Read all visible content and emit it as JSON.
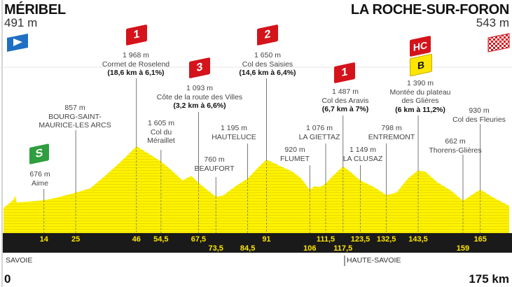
{
  "start": {
    "name": "MÉRIBEL",
    "altitude": "491 m"
  },
  "finish": {
    "name": "LA ROCHE-SUR-FORON",
    "altitude": "543 m"
  },
  "colors": {
    "profile": "#fff200",
    "band": "#1a1a1a",
    "km_text": "#ffe600",
    "climb_badge": "#d4131b",
    "bonus_badge": "#ffe600",
    "sprint": "#2e9e3e",
    "start_flag": "#1f6fc2"
  },
  "points": {
    "aime": {
      "alt": "676 m",
      "name": "Aime"
    },
    "bourg": {
      "alt": "857 m",
      "name1": "BOURG-SAINT-",
      "name2": "MAURICE-LES ARCS"
    },
    "roselend": {
      "cat": "1",
      "alt": "1 968 m",
      "name": "Cormet de Roselend",
      "climb": "(18,6 km à 6,1%)"
    },
    "meraillet": {
      "alt": "1 605 m",
      "name1": "Col du",
      "name2": "Méraillet"
    },
    "villes": {
      "cat": "3",
      "alt": "1 093 m",
      "name": "Côte de la route des Villes",
      "climb": "(3,2 km à 6,6%)"
    },
    "hauteluce": {
      "alt": "1 195 m",
      "name": "HAUTELUCE"
    },
    "beaufort": {
      "alt": "760 m",
      "name": "BEAUFORT"
    },
    "saisies": {
      "cat": "2",
      "alt": "1 650 m",
      "name": "Col des Saisies",
      "climb": "(14,6 km à 6,4%)"
    },
    "giettaz": {
      "alt": "1 076 m",
      "name": "LA GIETTAZ"
    },
    "flumet": {
      "alt": "920 m",
      "name": "FLUMET"
    },
    "aravis": {
      "cat": "1",
      "alt": "1 487 m",
      "name": "Col des Aravis",
      "climb": "(6,7 km à 7%)"
    },
    "clusaz": {
      "alt": "1 149 m",
      "name": "LA CLUSAZ"
    },
    "entremont": {
      "alt": "798 m",
      "name": "ENTREMONT"
    },
    "glieres": {
      "cat": "HC",
      "bonus": "B",
      "alt": "1 390 m",
      "name1": "Montée du plateau",
      "name2": "des Glières",
      "climb": "(6 km à 11,2%)"
    },
    "thorens": {
      "alt": "662 m",
      "name": "Thorens-Glières"
    },
    "fleuries": {
      "alt": "930 m",
      "name": "Col des Fleuries"
    }
  },
  "sprint_icon": "S",
  "regions": {
    "left": "SAVOIE",
    "right": "HAUTE-SAVOIE"
  },
  "axis": {
    "start_label": "0",
    "end_label": "175 km"
  },
  "chart_data": {
    "type": "area",
    "xlabel": "",
    "ylabel": "",
    "xlim": [
      0,
      175
    ],
    "x_unit": "km",
    "y_unit": "m",
    "profile": [
      [
        0,
        491
      ],
      [
        2,
        600
      ],
      [
        3.5,
        690
      ],
      [
        4,
        790
      ],
      [
        4.6,
        620
      ],
      [
        8,
        640
      ],
      [
        14,
        676
      ],
      [
        18,
        730
      ],
      [
        25,
        857
      ],
      [
        30,
        960
      ],
      [
        35,
        1250
      ],
      [
        40,
        1560
      ],
      [
        43,
        1760
      ],
      [
        46,
        1968
      ],
      [
        50,
        1800
      ],
      [
        54.5,
        1605
      ],
      [
        58,
        1400
      ],
      [
        62,
        1150
      ],
      [
        65,
        1260
      ],
      [
        67.5,
        1093
      ],
      [
        70,
        950
      ],
      [
        73.5,
        760
      ],
      [
        76,
        790
      ],
      [
        80,
        1000
      ],
      [
        84.5,
        1195
      ],
      [
        88,
        1450
      ],
      [
        91,
        1650
      ],
      [
        95,
        1520
      ],
      [
        100,
        1360
      ],
      [
        103,
        1200
      ],
      [
        106,
        920
      ],
      [
        107.5,
        1010
      ],
      [
        109.5,
        990
      ],
      [
        111.5,
        1076
      ],
      [
        114,
        1260
      ],
      [
        117.5,
        1487
      ],
      [
        120,
        1360
      ],
      [
        123.5,
        1149
      ],
      [
        128,
        1000
      ],
      [
        132.5,
        798
      ],
      [
        136,
        860
      ],
      [
        140,
        1200
      ],
      [
        143.5,
        1390
      ],
      [
        146,
        1360
      ],
      [
        150,
        1110
      ],
      [
        155,
        900
      ],
      [
        159,
        662
      ],
      [
        162,
        800
      ],
      [
        165,
        930
      ],
      [
        170,
        720
      ],
      [
        175,
        543
      ]
    ],
    "km_marks": [
      {
        "km": 14,
        "label": "14"
      },
      {
        "km": 25,
        "label": "25"
      },
      {
        "km": 46,
        "label": "46"
      },
      {
        "km": 54.5,
        "label": "54,5"
      },
      {
        "km": 67.5,
        "label": "67,5"
      },
      {
        "km": 73.5,
        "label": "73,5"
      },
      {
        "km": 84.5,
        "label": "84,5"
      },
      {
        "km": 91,
        "label": "91"
      },
      {
        "km": 106,
        "label": "106"
      },
      {
        "km": 111.5,
        "label": "111,5"
      },
      {
        "km": 117.5,
        "label": "117,5"
      },
      {
        "km": 123.5,
        "label": "123,5"
      },
      {
        "km": 132.5,
        "label": "132,5"
      },
      {
        "km": 143.5,
        "label": "143,5"
      },
      {
        "km": 159,
        "label": "159"
      },
      {
        "km": 165,
        "label": "165"
      }
    ]
  }
}
